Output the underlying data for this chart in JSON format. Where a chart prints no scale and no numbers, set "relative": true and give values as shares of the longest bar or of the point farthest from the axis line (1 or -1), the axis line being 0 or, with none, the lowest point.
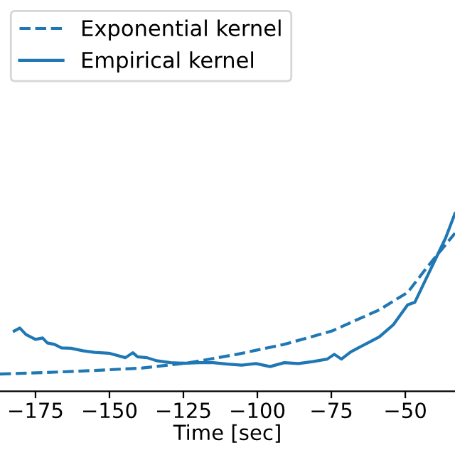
{
  "chart_data": {
    "type": "line",
    "relative": true,
    "xlabel": "Time [sec]",
    "xlim": [
      -187,
      -33.2
    ],
    "xticks": [
      -175,
      -150,
      -125,
      -100,
      -75,
      -50
    ],
    "legend": "top left",
    "grid": false,
    "marker": "none",
    "series": [
      {
        "name": "Exponential kernel",
        "color": "#1f77b4",
        "line_style": "dashed",
        "x": [
          -187.0,
          -171.0,
          -155.0,
          -138.9,
          -122.9,
          -106.9,
          -90.9,
          -74.8,
          -58.8,
          -49.2,
          -42.8,
          -33.2
        ],
        "values": [
          0.097,
          0.106,
          0.117,
          0.131,
          0.161,
          0.208,
          0.264,
          0.339,
          0.458,
          0.556,
          0.694,
          0.889
        ]
      },
      {
        "name": "Empirical kernel",
        "color": "#1f77b4",
        "line_style": "solid",
        "x": [
          -182.2,
          -180.3,
          -178.2,
          -175.0,
          -172.6,
          -171.0,
          -168.6,
          -166.2,
          -163.0,
          -159.0,
          -155.0,
          -150.2,
          -144.6,
          -142.1,
          -140.5,
          -137.3,
          -134.1,
          -129.3,
          -124.5,
          -119.7,
          -114.9,
          -110.1,
          -105.3,
          -100.5,
          -95.7,
          -90.9,
          -86.1,
          -81.3,
          -76.4,
          -74.0,
          -71.6,
          -68.4,
          -63.6,
          -58.8,
          -54.0,
          -49.2,
          -46.8,
          -42.8,
          -39.6,
          -36.4,
          -33.2
        ],
        "values": [
          0.339,
          0.356,
          0.319,
          0.292,
          0.3,
          0.272,
          0.264,
          0.244,
          0.242,
          0.228,
          0.219,
          0.214,
          0.189,
          0.217,
          0.194,
          0.189,
          0.172,
          0.161,
          0.158,
          0.161,
          0.161,
          0.153,
          0.147,
          0.156,
          0.139,
          0.161,
          0.156,
          0.167,
          0.181,
          0.208,
          0.181,
          0.222,
          0.264,
          0.306,
          0.375,
          0.486,
          0.5,
          0.639,
          0.75,
          0.861,
          1.0
        ]
      }
    ]
  }
}
